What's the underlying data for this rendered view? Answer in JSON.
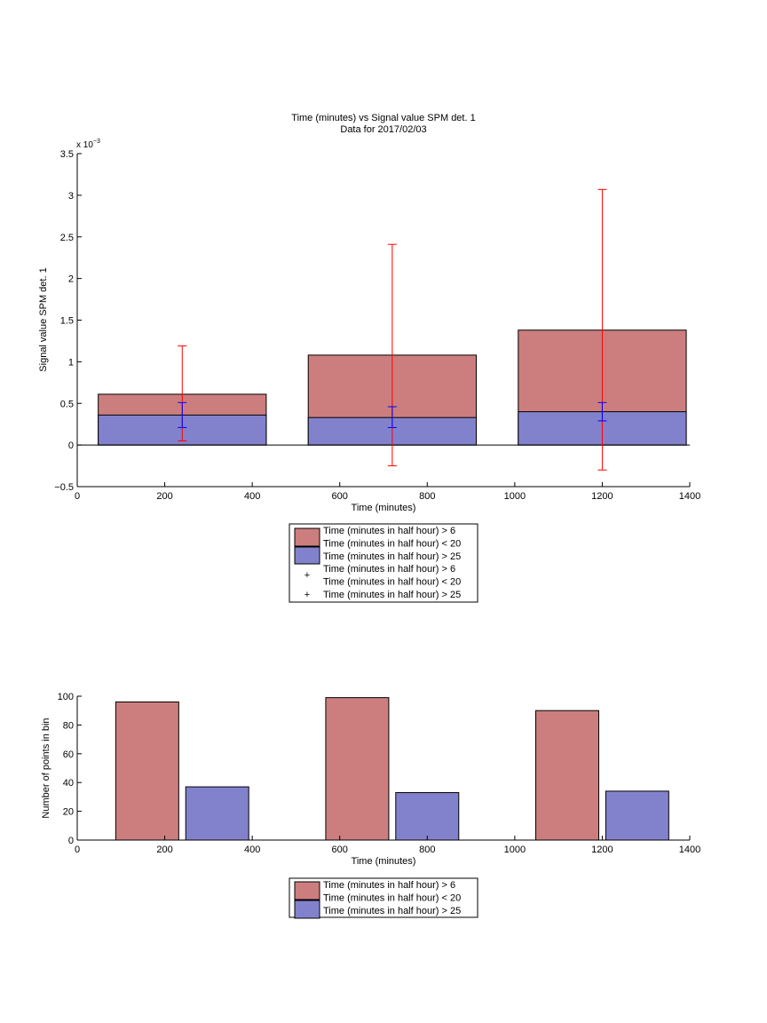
{
  "chart_data": [
    {
      "type": "bar",
      "title": "Time (minutes) vs Signal value SPM det. 1",
      "subtitle": "Data for 2017/02/03",
      "xlabel": "Time (minutes)",
      "ylabel": "Signal value SPM det. 1",
      "exponent_prefix": "x 10",
      "exponent_power": "−3",
      "xlim": [
        0,
        1400
      ],
      "ylim": [
        -0.5,
        3.5
      ],
      "x_ticks": [
        0,
        200,
        400,
        600,
        800,
        1000,
        1200,
        1400
      ],
      "y_ticks": [
        -0.5,
        0,
        0.5,
        1,
        1.5,
        2,
        2.5,
        3,
        3.5
      ],
      "x_tick_labels": [
        "0",
        "200",
        "400",
        "600",
        "800",
        "1000",
        "1200",
        "1400"
      ],
      "y_tick_labels": [
        "−0.5",
        "0",
        "0.5",
        "1",
        "1.5",
        "2",
        "2.5",
        "3",
        "3.5"
      ],
      "bar_width": 384,
      "colors": {
        "red_bar": "#cc7e7e",
        "blue_bar": "#8282cc",
        "red_err": "#ff0000",
        "blue_err": "#0000ff"
      },
      "series": [
        {
          "name": "Time (minutes in half hour) > 6",
          "name2": "Time (minutes in half hour) < 20",
          "x": [
            240,
            720,
            1200
          ],
          "values": [
            0.61,
            1.08,
            1.38
          ],
          "err_low": [
            0.05,
            -0.25,
            -0.3
          ],
          "err_high": [
            1.19,
            2.41,
            3.07
          ]
        },
        {
          "name": "Time (minutes in half hour) > 25",
          "x": [
            240,
            720,
            1200
          ],
          "values": [
            0.36,
            0.33,
            0.4
          ],
          "err_low": [
            0.21,
            0.21,
            0.29
          ],
          "err_high": [
            0.51,
            0.46,
            0.51
          ]
        }
      ],
      "legend": {
        "placement": "below",
        "entries": [
          "Time (minutes in half hour) > 6",
          "Time (minutes in half hour) < 20",
          "Time (minutes in half hour) > 25",
          "Time (minutes in half hour) > 6",
          "Time (minutes in half hour) < 20",
          "Time (minutes in half hour) > 25"
        ]
      }
    },
    {
      "type": "bar",
      "xlabel": "Time (minutes)",
      "ylabel": "Number of points in bin",
      "xlim": [
        0,
        1400
      ],
      "ylim": [
        0,
        100
      ],
      "x_ticks": [
        0,
        200,
        400,
        600,
        800,
        1000,
        1200,
        1400
      ],
      "y_ticks": [
        0,
        20,
        40,
        60,
        80,
        100
      ],
      "x_tick_labels": [
        "0",
        "200",
        "400",
        "600",
        "800",
        "1000",
        "1200",
        "1400"
      ],
      "y_tick_labels": [
        "0",
        "20",
        "40",
        "60",
        "80",
        "100"
      ],
      "bar_width": 144,
      "colors": {
        "red_bar": "#cc7e7e",
        "blue_bar": "#8282cc"
      },
      "series": [
        {
          "name": "Time (minutes in half hour) > 6",
          "name2": "Time (minutes in half hour) < 20",
          "x": [
            160,
            640,
            1120
          ],
          "values": [
            96,
            99,
            90
          ]
        },
        {
          "name": "Time (minutes in half hour) > 25",
          "x": [
            320,
            800,
            1280
          ],
          "values": [
            37,
            33,
            34
          ]
        }
      ],
      "legend": {
        "placement": "below",
        "entries": [
          "Time (minutes in half hour) > 6",
          "Time (minutes in half hour) < 20",
          "Time (minutes in half hour) > 25"
        ]
      }
    }
  ]
}
